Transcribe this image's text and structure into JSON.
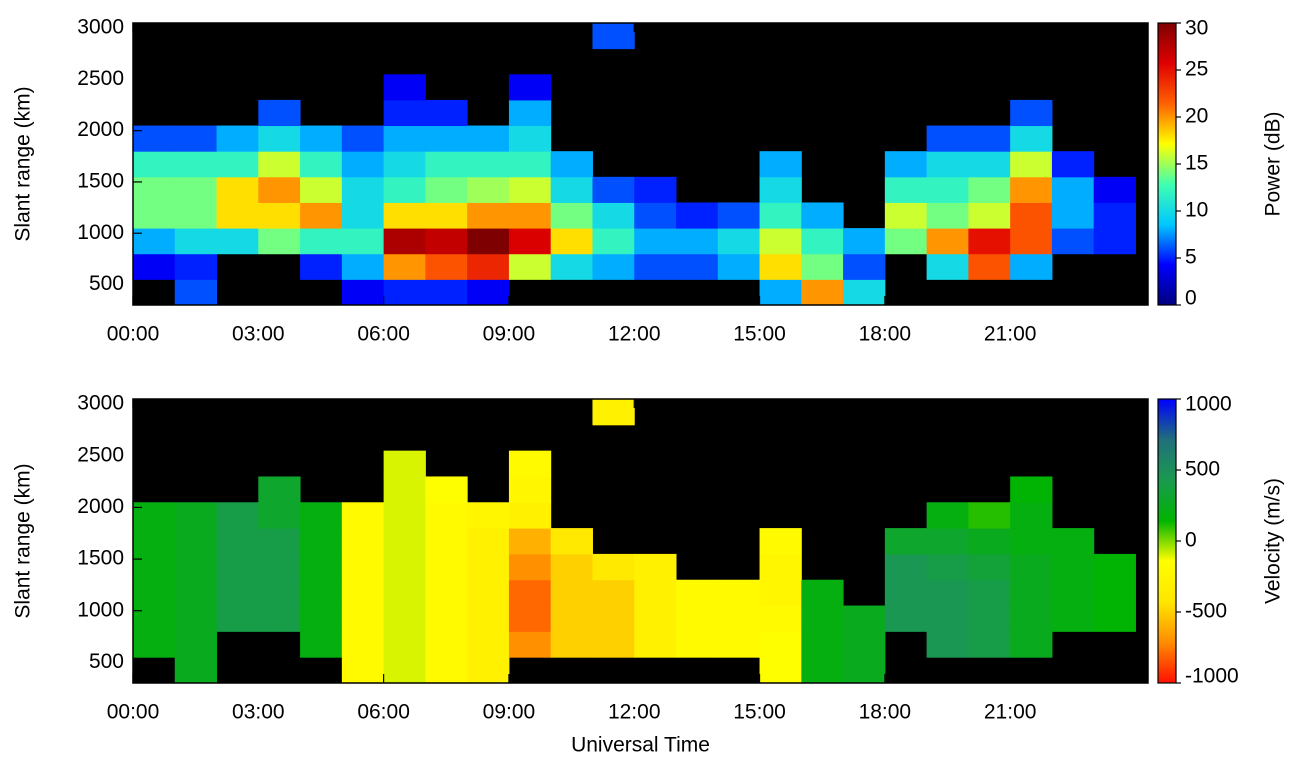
{
  "chart_data": [
    {
      "type": "heatmap",
      "ylabel": "Slant range (km)",
      "xlim": [
        0,
        24.3
      ],
      "xticks": [
        {
          "value": 0,
          "label": "00:00"
        },
        {
          "value": 3,
          "label": "03:00"
        },
        {
          "value": 6,
          "label": "06:00"
        },
        {
          "value": 9,
          "label": "09:00"
        },
        {
          "value": 12,
          "label": "12:00"
        },
        {
          "value": 15,
          "label": "15:00"
        },
        {
          "value": 18,
          "label": "18:00"
        },
        {
          "value": 21,
          "label": "21:00"
        }
      ],
      "ylim": [
        300,
        3050
      ],
      "yticks": [
        500,
        1000,
        1500,
        2000,
        2500,
        3000
      ],
      "background": "#000000",
      "colorbar": {
        "label": "Power (dB)",
        "lim": [
          0,
          30
        ],
        "ticks": [
          0,
          5,
          10,
          15,
          20,
          25,
          30
        ],
        "colormap": [
          "#00007f",
          "#0000ff",
          "#00c8ff",
          "#40ffb0",
          "#ffff00",
          "#ff6000",
          "#e00000",
          "#7f0000"
        ]
      },
      "x_bins": [
        0,
        1,
        2,
        3,
        4,
        5,
        6,
        7,
        8,
        9,
        10,
        11,
        12,
        13,
        14,
        15,
        16,
        17,
        18,
        19,
        20,
        21,
        22,
        23,
        24
      ],
      "y_bins": [
        300,
        550,
        800,
        1050,
        1300,
        1550,
        1800,
        2050,
        2300,
        2550,
        2800,
        3050
      ],
      "z": [
        [
          null,
          6,
          null,
          null,
          null,
          4,
          5,
          5,
          4,
          null,
          null,
          null,
          null,
          null,
          null,
          8,
          20,
          10,
          null,
          null,
          null,
          null,
          null,
          null
        ],
        [
          4,
          5,
          null,
          null,
          5,
          8,
          20,
          22,
          24,
          16,
          10,
          8,
          6,
          6,
          8,
          18,
          14,
          6,
          null,
          10,
          22,
          8,
          null,
          null
        ],
        [
          8,
          10,
          10,
          14,
          12,
          12,
          28,
          27,
          30,
          26,
          18,
          12,
          8,
          8,
          10,
          16,
          12,
          8,
          14,
          20,
          25,
          22,
          6,
          5
        ],
        [
          14,
          14,
          18,
          18,
          20,
          10,
          18,
          18,
          20,
          20,
          14,
          10,
          6,
          5,
          6,
          12,
          8,
          null,
          16,
          14,
          16,
          22,
          8,
          5
        ],
        [
          14,
          14,
          18,
          20,
          16,
          10,
          12,
          14,
          15,
          16,
          10,
          6,
          5,
          null,
          null,
          10,
          null,
          null,
          12,
          12,
          14,
          20,
          8,
          4
        ],
        [
          12,
          12,
          12,
          16,
          12,
          8,
          10,
          12,
          12,
          12,
          8,
          null,
          null,
          null,
          null,
          8,
          null,
          null,
          8,
          10,
          10,
          16,
          5,
          null
        ],
        [
          6,
          6,
          8,
          10,
          8,
          6,
          8,
          8,
          8,
          10,
          null,
          null,
          null,
          null,
          null,
          null,
          null,
          null,
          null,
          6,
          6,
          10,
          null,
          null
        ],
        [
          null,
          null,
          null,
          6,
          null,
          null,
          5,
          5,
          null,
          8,
          null,
          null,
          null,
          null,
          null,
          null,
          null,
          null,
          null,
          null,
          null,
          6,
          null,
          null
        ],
        [
          null,
          null,
          null,
          null,
          null,
          null,
          4,
          null,
          null,
          4,
          null,
          null,
          null,
          null,
          null,
          null,
          null,
          null,
          null,
          null,
          null,
          null,
          null,
          null
        ],
        [
          null,
          null,
          null,
          null,
          null,
          null,
          null,
          null,
          null,
          null,
          null,
          null,
          null,
          null,
          null,
          null,
          null,
          null,
          null,
          null,
          null,
          null,
          null,
          null
        ],
        [
          null,
          null,
          null,
          null,
          null,
          null,
          null,
          null,
          null,
          null,
          null,
          6,
          null,
          null,
          null,
          null,
          null,
          null,
          null,
          null,
          null,
          null,
          null,
          null
        ]
      ]
    },
    {
      "type": "heatmap",
      "ylabel": "Slant range (km)",
      "xlabel": "Universal Time",
      "xlim": [
        0,
        24.3
      ],
      "xticks": [
        {
          "value": 0,
          "label": "00:00"
        },
        {
          "value": 3,
          "label": "03:00"
        },
        {
          "value": 6,
          "label": "06:00"
        },
        {
          "value": 9,
          "label": "09:00"
        },
        {
          "value": 12,
          "label": "12:00"
        },
        {
          "value": 15,
          "label": "15:00"
        },
        {
          "value": 18,
          "label": "18:00"
        },
        {
          "value": 21,
          "label": "21:00"
        }
      ],
      "ylim": [
        300,
        3050
      ],
      "yticks": [
        500,
        1000,
        1500,
        2000,
        2500,
        3000
      ],
      "background": "#000000",
      "colorbar": {
        "label": "Velocity (m/s)",
        "lim": [
          -1000,
          1000
        ],
        "ticks": [
          -1000,
          -500,
          0,
          500,
          1000
        ],
        "colormap": [
          "#ff1000",
          "#ff8c00",
          "#ffe600",
          "#ffff00",
          "#00b400",
          "#1a9a50",
          "#20707a",
          "#0000ff"
        ]
      },
      "x_bins": [
        0,
        1,
        2,
        3,
        4,
        5,
        6,
        7,
        8,
        9,
        10,
        11,
        12,
        13,
        14,
        15,
        16,
        17,
        18,
        19,
        20,
        21,
        22,
        23,
        24
      ],
      "y_bins": [
        300,
        550,
        800,
        1050,
        1300,
        1550,
        1800,
        2050,
        2300,
        2550,
        2800,
        3050
      ],
      "z": [
        [
          null,
          250,
          null,
          null,
          null,
          -200,
          -100,
          -200,
          -300,
          null,
          null,
          null,
          null,
          null,
          null,
          -150,
          200,
          250,
          null,
          null,
          null,
          null,
          null,
          null
        ],
        [
          200,
          250,
          null,
          null,
          200,
          -200,
          -100,
          -200,
          -300,
          -700,
          -500,
          -500,
          -300,
          -200,
          -200,
          -150,
          200,
          250,
          null,
          450,
          400,
          250,
          null,
          null
        ],
        [
          200,
          250,
          400,
          400,
          200,
          -200,
          -100,
          -200,
          -300,
          -800,
          -500,
          -500,
          -300,
          -200,
          -200,
          -200,
          200,
          250,
          450,
          450,
          400,
          250,
          200,
          150
        ],
        [
          200,
          250,
          400,
          400,
          200,
          -200,
          -100,
          -200,
          -300,
          -800,
          -500,
          -500,
          -300,
          -200,
          -200,
          -250,
          200,
          null,
          450,
          450,
          400,
          250,
          200,
          150
        ],
        [
          200,
          250,
          400,
          400,
          200,
          -200,
          -100,
          -200,
          -300,
          -700,
          -500,
          -400,
          -300,
          null,
          null,
          -250,
          null,
          null,
          450,
          400,
          350,
          250,
          200,
          150
        ],
        [
          200,
          250,
          400,
          400,
          200,
          -200,
          -100,
          -200,
          -300,
          -600,
          -400,
          null,
          null,
          null,
          null,
          -200,
          null,
          null,
          300,
          300,
          250,
          200,
          200,
          null
        ],
        [
          200,
          250,
          400,
          300,
          200,
          -200,
          -100,
          -200,
          -250,
          -300,
          null,
          null,
          null,
          null,
          null,
          null,
          null,
          null,
          null,
          200,
          100,
          200,
          null,
          null
        ],
        [
          null,
          null,
          null,
          300,
          null,
          null,
          -100,
          -150,
          null,
          -250,
          null,
          null,
          null,
          null,
          null,
          null,
          null,
          null,
          null,
          null,
          null,
          150,
          null,
          null
        ],
        [
          null,
          null,
          null,
          null,
          null,
          null,
          -100,
          null,
          null,
          -200,
          null,
          null,
          null,
          null,
          null,
          null,
          null,
          null,
          null,
          null,
          null,
          null,
          null,
          null
        ],
        [
          null,
          null,
          null,
          null,
          null,
          null,
          null,
          null,
          null,
          null,
          null,
          null,
          null,
          null,
          null,
          null,
          null,
          null,
          null,
          null,
          null,
          null,
          null,
          null
        ],
        [
          null,
          null,
          null,
          null,
          null,
          null,
          null,
          null,
          null,
          null,
          null,
          -300,
          null,
          null,
          null,
          null,
          null,
          null,
          null,
          null,
          null,
          null,
          null,
          null
        ]
      ]
    }
  ]
}
